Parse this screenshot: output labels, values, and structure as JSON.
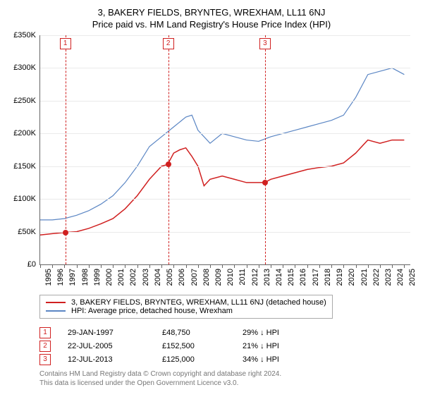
{
  "title": {
    "line1": "3, BAKERY FIELDS, BRYNTEG, WREXHAM, LL11 6NJ",
    "line2": "Price paid vs. HM Land Registry's House Price Index (HPI)"
  },
  "chart": {
    "type": "line",
    "background_color": "#ffffff",
    "grid_color": "#eaeaea",
    "axis_color": "#666666",
    "x": {
      "min": 1995,
      "max": 2025.5,
      "ticks": [
        1995,
        1996,
        1997,
        1998,
        1999,
        2000,
        2001,
        2002,
        2003,
        2004,
        2005,
        2006,
        2007,
        2008,
        2009,
        2010,
        2011,
        2012,
        2013,
        2014,
        2015,
        2016,
        2017,
        2018,
        2019,
        2020,
        2021,
        2022,
        2023,
        2024,
        2025
      ]
    },
    "y": {
      "min": 0,
      "max": 350000,
      "ticks": [
        0,
        50000,
        100000,
        150000,
        200000,
        250000,
        300000,
        350000
      ],
      "tick_labels": [
        "£0",
        "£50K",
        "£100K",
        "£150K",
        "£200K",
        "£250K",
        "£300K",
        "£350K"
      ],
      "label_fontsize": 11
    },
    "series": [
      {
        "name": "property_price",
        "label": "3, BAKERY FIELDS, BRYNTEG, WREXHAM, LL11 6NJ (detached house)",
        "color": "#d02020",
        "line_width": 1.5,
        "x": [
          1995,
          1996,
          1997,
          1998,
          1999,
          2000,
          2001,
          2002,
          2003,
          2004,
          2004.5,
          2005,
          2005.5,
          2006,
          2006.5,
          2007,
          2007.5,
          2008,
          2008.5,
          2009,
          2010,
          2011,
          2012,
          2013,
          2013.5,
          2014,
          2015,
          2016,
          2017,
          2018,
          2019,
          2020,
          2021,
          2022,
          2023,
          2024,
          2025
        ],
        "y": [
          45000,
          47000,
          48750,
          50000,
          55000,
          62000,
          70000,
          85000,
          105000,
          130000,
          140000,
          150000,
          152500,
          170000,
          175000,
          178000,
          165000,
          150000,
          120000,
          130000,
          135000,
          130000,
          125000,
          125000,
          125000,
          130000,
          135000,
          140000,
          145000,
          148000,
          150000,
          155000,
          170000,
          190000,
          185000,
          190000,
          190000
        ]
      },
      {
        "name": "hpi",
        "label": "HPI: Average price, detached house, Wrexham",
        "color": "#5b86c4",
        "line_width": 1.2,
        "x": [
          1995,
          1996,
          1997,
          1998,
          1999,
          2000,
          2001,
          2002,
          2003,
          2004,
          2005,
          2006,
          2007,
          2007.5,
          2008,
          2009,
          2010,
          2011,
          2012,
          2013,
          2014,
          2015,
          2016,
          2017,
          2018,
          2019,
          2020,
          2021,
          2022,
          2023,
          2024,
          2025
        ],
        "y": [
          68000,
          68000,
          70000,
          75000,
          82000,
          92000,
          105000,
          125000,
          150000,
          180000,
          195000,
          210000,
          225000,
          228000,
          205000,
          185000,
          200000,
          195000,
          190000,
          188000,
          195000,
          200000,
          205000,
          210000,
          215000,
          220000,
          228000,
          255000,
          290000,
          295000,
          300000,
          290000
        ]
      }
    ],
    "sale_markers": [
      {
        "index": "1",
        "x": 1997.07,
        "y": 48750
      },
      {
        "index": "2",
        "x": 2005.55,
        "y": 152500
      },
      {
        "index": "3",
        "x": 2013.53,
        "y": 125000
      }
    ],
    "marker_box_color": "#d02020"
  },
  "legend": {
    "rows": [
      {
        "color": "#d02020",
        "label": "3, BAKERY FIELDS, BRYNTEG, WREXHAM, LL11 6NJ (detached house)"
      },
      {
        "color": "#5b86c4",
        "label": "HPI: Average price, detached house, Wrexham"
      }
    ]
  },
  "sales_table": {
    "rows": [
      {
        "index": "1",
        "date": "29-JAN-1997",
        "price": "£48,750",
        "delta": "29% ↓ HPI"
      },
      {
        "index": "2",
        "date": "22-JUL-2005",
        "price": "£152,500",
        "delta": "21% ↓ HPI"
      },
      {
        "index": "3",
        "date": "12-JUL-2013",
        "price": "£125,000",
        "delta": "34% ↓ HPI"
      }
    ]
  },
  "attribution": {
    "line1": "Contains HM Land Registry data © Crown copyright and database right 2024.",
    "line2": "This data is licensed under the Open Government Licence v3.0."
  }
}
